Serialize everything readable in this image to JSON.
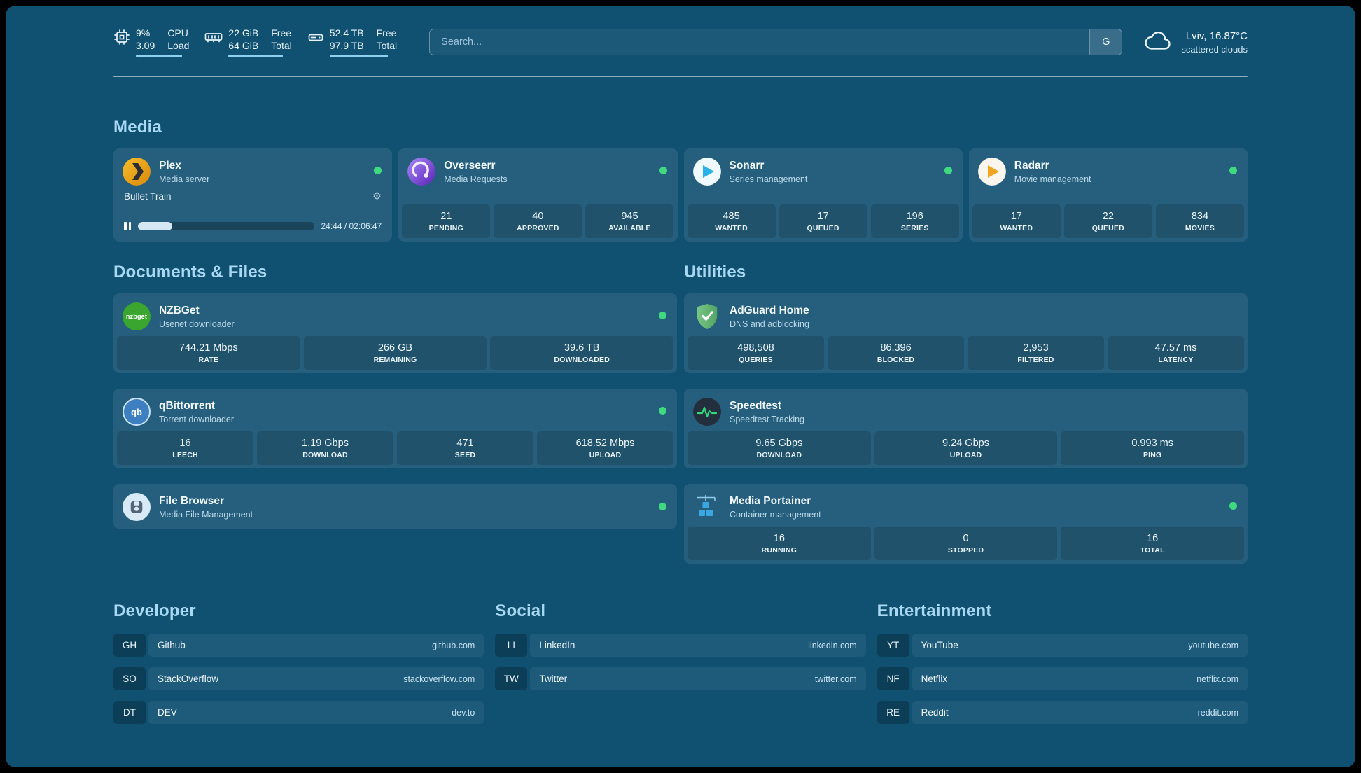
{
  "theme": {
    "background": "#105071",
    "accent": "#a9d9f2",
    "status_online": "#3fd97f",
    "meter": "#8fd2ef"
  },
  "topbar": {
    "cpu": {
      "icon": "cpu-icon",
      "values": [
        "9%",
        "3.09"
      ],
      "labels": [
        "CPU",
        "Load"
      ]
    },
    "memory": {
      "icon": "memory-icon",
      "values": [
        "22 GiB",
        "64 GiB"
      ],
      "labels": [
        "Free",
        "Total"
      ]
    },
    "disk": {
      "icon": "disk-icon",
      "values": [
        "52.4 TB",
        "97.9 TB"
      ],
      "labels": [
        "Free",
        "Total"
      ]
    },
    "search": {
      "placeholder": "Search...",
      "button_label": "G"
    },
    "weather": {
      "icon": "cloud-icon",
      "location": "Lviv, 16.87°C",
      "condition": "scattered clouds"
    }
  },
  "media": {
    "title": "Media",
    "plex": {
      "name": "Plex",
      "subtitle": "Media server",
      "status": "online",
      "now_playing": {
        "title": "Bullet Train",
        "time": "24:44 / 02:06:47",
        "progress_pct": 19.5
      }
    },
    "overseerr": {
      "name": "Overseerr",
      "subtitle": "Media Requests",
      "status": "online",
      "stats": [
        {
          "value": "21",
          "label": "PENDING"
        },
        {
          "value": "40",
          "label": "APPROVED"
        },
        {
          "value": "945",
          "label": "AVAILABLE"
        }
      ]
    },
    "sonarr": {
      "name": "Sonarr",
      "subtitle": "Series management",
      "status": "online",
      "stats": [
        {
          "value": "485",
          "label": "WANTED"
        },
        {
          "value": "17",
          "label": "QUEUED"
        },
        {
          "value": "196",
          "label": "SERIES"
        }
      ]
    },
    "radarr": {
      "name": "Radarr",
      "subtitle": "Movie management",
      "status": "online",
      "stats": [
        {
          "value": "17",
          "label": "WANTED"
        },
        {
          "value": "22",
          "label": "QUEUED"
        },
        {
          "value": "834",
          "label": "MOVIES"
        }
      ]
    }
  },
  "documents": {
    "title": "Documents & Files",
    "nzbget": {
      "name": "NZBGet",
      "subtitle": "Usenet downloader",
      "icon_text": "nzbget",
      "status": "online",
      "stats": [
        {
          "value": "744.21 Mbps",
          "label": "RATE"
        },
        {
          "value": "266 GB",
          "label": "REMAINING"
        },
        {
          "value": "39.6 TB",
          "label": "DOWNLOADED"
        }
      ]
    },
    "qbittorrent": {
      "name": "qBittorrent",
      "subtitle": "Torrent downloader",
      "icon_text": "qb",
      "status": "online",
      "stats": [
        {
          "value": "16",
          "label": "LEECH"
        },
        {
          "value": "1.19 Gbps",
          "label": "DOWNLOAD"
        },
        {
          "value": "471",
          "label": "SEED"
        },
        {
          "value": "618.52 Mbps",
          "label": "UPLOAD"
        }
      ]
    },
    "filebrowser": {
      "name": "File Browser",
      "subtitle": "Media File Management",
      "status": "online"
    }
  },
  "utilities": {
    "title": "Utilities",
    "adguard": {
      "name": "AdGuard Home",
      "subtitle": "DNS and adblocking",
      "stats": [
        {
          "value": "498,508",
          "label": "QUERIES"
        },
        {
          "value": "86,396",
          "label": "BLOCKED"
        },
        {
          "value": "2,953",
          "label": "FILTERED"
        },
        {
          "value": "47.57 ms",
          "label": "LATENCY"
        }
      ]
    },
    "speedtest": {
      "name": "Speedtest",
      "subtitle": "Speedtest Tracking",
      "stats": [
        {
          "value": "9.65 Gbps",
          "label": "DOWNLOAD"
        },
        {
          "value": "9.24 Gbps",
          "label": "UPLOAD"
        },
        {
          "value": "0.993 ms",
          "label": "PING"
        }
      ]
    },
    "portainer": {
      "name": "Media Portainer",
      "subtitle": "Container management",
      "status": "online",
      "stats": [
        {
          "value": "16",
          "label": "RUNNING"
        },
        {
          "value": "0",
          "label": "STOPPED"
        },
        {
          "value": "16",
          "label": "TOTAL"
        }
      ]
    }
  },
  "bookmarks": {
    "developer": {
      "title": "Developer",
      "items": [
        {
          "abbr": "GH",
          "name": "Github",
          "url": "github.com"
        },
        {
          "abbr": "SO",
          "name": "StackOverflow",
          "url": "stackoverflow.com"
        },
        {
          "abbr": "DT",
          "name": "DEV",
          "url": "dev.to"
        }
      ]
    },
    "social": {
      "title": "Social",
      "items": [
        {
          "abbr": "LI",
          "name": "LinkedIn",
          "url": "linkedin.com"
        },
        {
          "abbr": "TW",
          "name": "Twitter",
          "url": "twitter.com"
        }
      ]
    },
    "entertainment": {
      "title": "Entertainment",
      "items": [
        {
          "abbr": "YT",
          "name": "YouTube",
          "url": "youtube.com"
        },
        {
          "abbr": "NF",
          "name": "Netflix",
          "url": "netflix.com"
        },
        {
          "abbr": "RE",
          "name": "Reddit",
          "url": "reddit.com"
        }
      ]
    }
  }
}
